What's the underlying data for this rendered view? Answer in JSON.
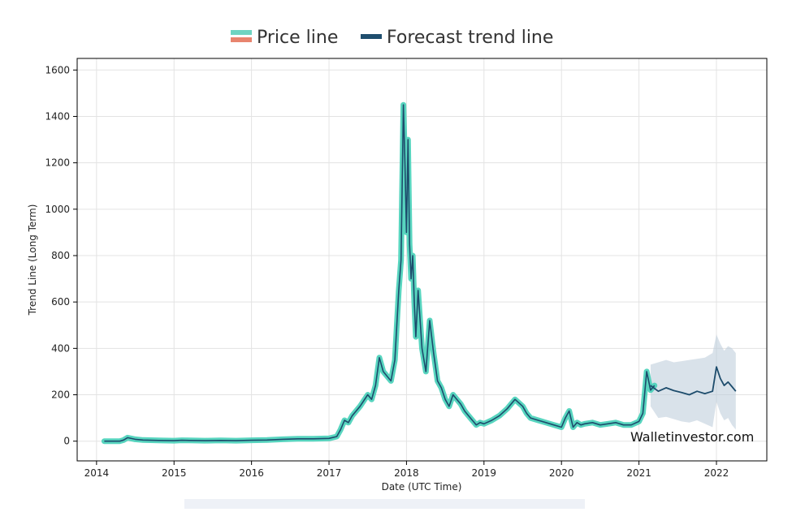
{
  "legend": {
    "items": [
      {
        "label": "Price line",
        "colors": [
          "#6fd4c1",
          "#e8846e"
        ]
      },
      {
        "label": "Forecast trend line",
        "colors": [
          "#1f4e6e"
        ]
      }
    ]
  },
  "watermark": "Walletinvestor.com",
  "chart_data": {
    "type": "line",
    "title": "",
    "xlabel": "Date (UTC Time)",
    "ylabel": "Trend Line (Long Term)",
    "x_ticks": [
      "2014",
      "2015",
      "2016",
      "2017",
      "2018",
      "2019",
      "2020",
      "2021",
      "2022"
    ],
    "y_ticks": [
      0,
      200,
      400,
      600,
      800,
      1000,
      1200,
      1400,
      1600
    ],
    "xlim": [
      2013.75,
      2022.65
    ],
    "ylim": [
      -85,
      1650
    ],
    "grid": true,
    "legend_position": "top-center",
    "colors": {
      "price": "#46d0b8",
      "trend": "#1d4c6c",
      "band": "#b9cad8"
    },
    "series": [
      {
        "name": "Price line",
        "x": [
          2014.1,
          2014.2,
          2014.3,
          2014.35,
          2014.4,
          2014.5,
          2014.6,
          2014.8,
          2015.0,
          2015.1,
          2015.2,
          2015.4,
          2015.6,
          2015.8,
          2016.0,
          2016.2,
          2016.4,
          2016.6,
          2016.8,
          2017.0,
          2017.1,
          2017.15,
          2017.2,
          2017.25,
          2017.3,
          2017.4,
          2017.5,
          2017.55,
          2017.6,
          2017.65,
          2017.7,
          2017.75,
          2017.8,
          2017.85,
          2017.9,
          2017.93,
          2017.96,
          2017.98,
          2018.0,
          2018.02,
          2018.04,
          2018.06,
          2018.08,
          2018.1,
          2018.12,
          2018.15,
          2018.18,
          2018.2,
          2018.25,
          2018.3,
          2018.35,
          2018.4,
          2018.45,
          2018.5,
          2018.55,
          2018.6,
          2018.65,
          2018.7,
          2018.75,
          2018.8,
          2018.85,
          2018.9,
          2018.95,
          2019.0,
          2019.1,
          2019.2,
          2019.3,
          2019.4,
          2019.5,
          2019.55,
          2019.6,
          2019.7,
          2019.8,
          2019.9,
          2020.0,
          2020.05,
          2020.1,
          2020.15,
          2020.2,
          2020.25,
          2020.3,
          2020.4,
          2020.5,
          2020.6,
          2020.7,
          2020.8,
          2020.9,
          2021.0,
          2021.05,
          2021.1,
          2021.15,
          2021.2
        ],
        "y": [
          0,
          0,
          0,
          5,
          15,
          8,
          5,
          3,
          2,
          4,
          3,
          2,
          3,
          2,
          4,
          5,
          8,
          10,
          10,
          12,
          20,
          50,
          90,
          80,
          110,
          150,
          200,
          180,
          240,
          360,
          300,
          280,
          260,
          350,
          650,
          780,
          1450,
          1200,
          900,
          1300,
          850,
          700,
          800,
          600,
          450,
          650,
          500,
          400,
          300,
          520,
          380,
          260,
          230,
          180,
          150,
          200,
          180,
          160,
          130,
          110,
          90,
          70,
          80,
          75,
          90,
          110,
          140,
          180,
          150,
          120,
          100,
          90,
          80,
          70,
          60,
          100,
          130,
          60,
          80,
          70,
          75,
          80,
          70,
          75,
          80,
          70,
          70,
          85,
          120,
          300,
          220,
          240
        ]
      },
      {
        "name": "Forecast trend line",
        "x": [
          2021.15,
          2021.25,
          2021.35,
          2021.45,
          2021.55,
          2021.65,
          2021.75,
          2021.85,
          2021.95,
          2022.0,
          2022.05,
          2022.1,
          2022.15,
          2022.2,
          2022.25
        ],
        "y": [
          240,
          215,
          230,
          218,
          210,
          200,
          215,
          205,
          215,
          320,
          270,
          240,
          255,
          235,
          215
        ],
        "band_upper": [
          330,
          340,
          350,
          340,
          345,
          350,
          355,
          360,
          380,
          460,
          420,
          390,
          410,
          400,
          380
        ],
        "band_lower": [
          150,
          100,
          105,
          95,
          85,
          80,
          90,
          75,
          60,
          170,
          120,
          90,
          100,
          70,
          50
        ]
      }
    ]
  }
}
